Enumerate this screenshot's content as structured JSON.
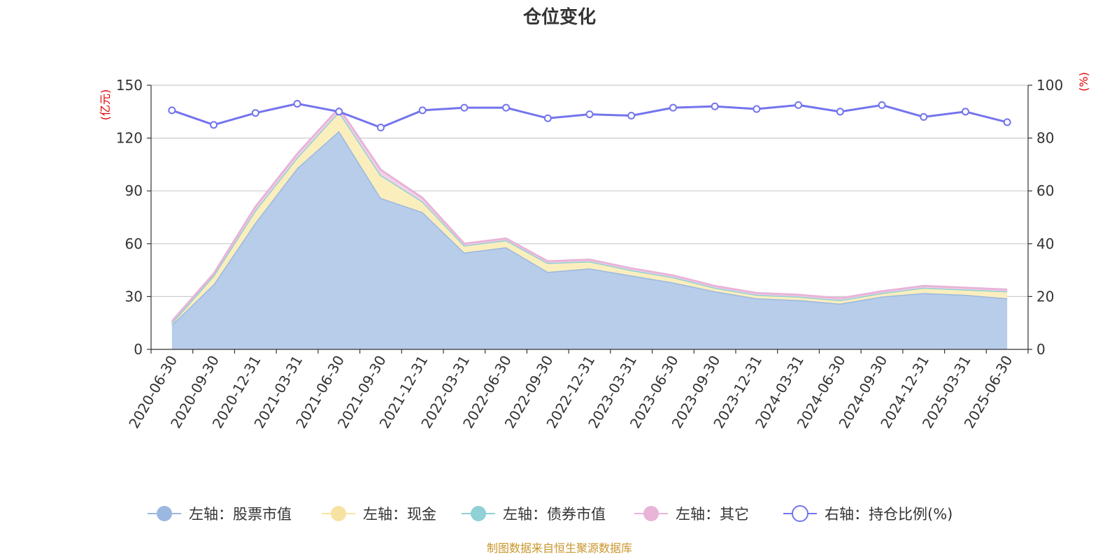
{
  "chart_data": {
    "type": "area",
    "title": "仓位变化",
    "left_unit": "(亿元)",
    "right_unit": "(%)",
    "left_ylim": [
      0,
      150
    ],
    "left_ticks": [
      "0",
      "30",
      "60",
      "90",
      "120",
      "150"
    ],
    "right_ylim": [
      0,
      100
    ],
    "right_ticks": [
      "0",
      "20",
      "40",
      "60",
      "80",
      "100"
    ],
    "grid": true,
    "legend_position": "bottom",
    "categories": [
      "2020-06-30",
      "2020-09-30",
      "2020-12-31",
      "2021-03-31",
      "2021-06-30",
      "2021-09-30",
      "2021-12-31",
      "2022-03-31",
      "2022-06-30",
      "2022-09-30",
      "2022-12-31",
      "2023-03-31",
      "2023-06-30",
      "2023-09-30",
      "2023-12-31",
      "2024-03-31",
      "2024-06-30",
      "2024-09-30",
      "2024-12-31",
      "2025-03-31",
      "2025-06-30"
    ],
    "series": [
      {
        "name": "左轴：股票市值",
        "axis": "left",
        "color": "#9bb8e0",
        "fill": "#b7cdea",
        "values": [
          14,
          37,
          72,
          103,
          124,
          86,
          78,
          55,
          58,
          44,
          46,
          42,
          38,
          33,
          29,
          28,
          26,
          30,
          32,
          31,
          29
        ]
      },
      {
        "name": "左轴：现金",
        "axis": "left",
        "color": "#f7e3a1",
        "fill": "#fbeebd",
        "values": [
          1,
          5,
          7,
          6,
          11,
          13,
          6,
          4,
          4,
          5,
          4,
          3,
          3,
          2,
          2,
          2,
          2,
          2,
          3,
          3,
          4
        ]
      },
      {
        "name": "左轴：债券市值",
        "axis": "left",
        "color": "#8fd1d4",
        "fill": "#b9e3e5",
        "values": [
          0,
          0,
          0,
          0,
          0,
          0,
          0,
          0,
          0,
          0,
          0,
          0,
          0,
          0,
          0,
          0,
          0,
          0,
          0,
          0,
          0
        ]
      },
      {
        "name": "左轴：其它",
        "axis": "left",
        "color": "#e8b4d8",
        "fill": "#f2d2e8",
        "values": [
          1,
          1,
          2,
          2,
          2,
          3,
          2,
          1,
          1,
          1,
          1,
          1,
          1,
          1,
          1,
          1,
          1,
          1,
          1,
          1,
          1
        ]
      },
      {
        "name": "右轴：持仓比例(%)",
        "axis": "right",
        "color": "#7474ee",
        "type": "line",
        "values": [
          90.5,
          85,
          89.5,
          93,
          90,
          84,
          90.5,
          91.5,
          91.5,
          87.5,
          89,
          88.5,
          91.5,
          92,
          91,
          92.5,
          90,
          92.5,
          88,
          90,
          86
        ]
      }
    ],
    "source": "制图数据来自恒生聚源数据库"
  }
}
